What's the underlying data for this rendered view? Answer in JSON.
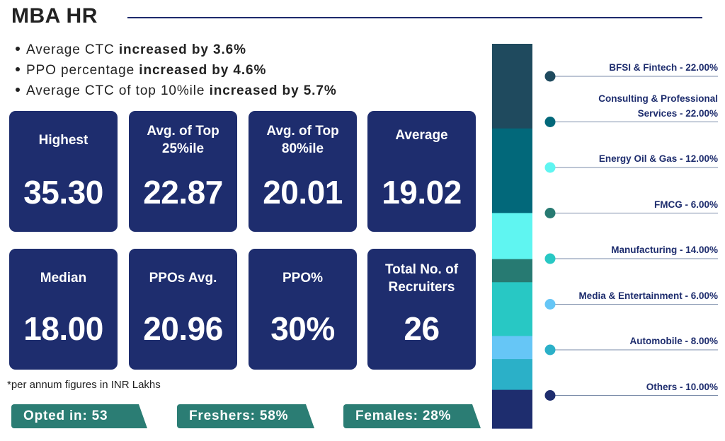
{
  "header": {
    "title": "MBA HR"
  },
  "bullets": [
    {
      "text": "Average CTC ",
      "bold": "increased by 3.6%"
    },
    {
      "text": "PPO percentage ",
      "bold": "increased by 4.6%"
    },
    {
      "text": "Average CTC of top 10%ile ",
      "bold": "increased by 5.7%"
    }
  ],
  "stats": [
    {
      "label": "Highest",
      "value": "35.30"
    },
    {
      "label": "Avg. of Top 25%ile",
      "value": "22.87"
    },
    {
      "label": "Avg. of Top 80%ile",
      "value": "20.01"
    },
    {
      "label": "Average",
      "value": "19.02"
    },
    {
      "label": "Median",
      "value": "18.00"
    },
    {
      "label": "PPOs Avg.",
      "value": "20.96"
    },
    {
      "label": "PPO%",
      "value": "30%"
    },
    {
      "label": "Total No. of Recruiters",
      "value": "26"
    }
  ],
  "footnote": "*per annum figures in INR Lakhs",
  "pills": [
    {
      "text": "Opted in: 53"
    },
    {
      "text": "Freshers: 58%"
    },
    {
      "text": "Females: 28%"
    }
  ],
  "chart_data": {
    "type": "bar",
    "stacked": true,
    "orientation": "vertical",
    "series": [
      {
        "name": "BFSI & Fintech",
        "value": 22.0,
        "label": "BFSI & Fintech - 22.00%",
        "color": "#1f4a5e"
      },
      {
        "name": "Consulting & Professional Services",
        "value": 22.0,
        "label_lines": [
          "Consulting & Professional",
          "Services - 22.00%"
        ],
        "color": "#02687a"
      },
      {
        "name": "Energy Oil & Gas",
        "value": 12.0,
        "label": "Energy Oil & Gas - 12.00%",
        "color": "#5ff5f1"
      },
      {
        "name": "FMCG",
        "value": 6.0,
        "label": "FMCG - 6.00%",
        "color": "#277a72"
      },
      {
        "name": "Manufacturing",
        "value": 14.0,
        "label": "Manufacturing - 14.00%",
        "color": "#28c8c4"
      },
      {
        "name": "Media & Entertainment",
        "value": 6.0,
        "label": "Media & Entertainment - 6.00%",
        "color": "#66c6f6"
      },
      {
        "name": "Automobile",
        "value": 8.0,
        "label": "Automobile - 8.00%",
        "color": "#2bb0c8"
      },
      {
        "name": "Others",
        "value": 10.0,
        "label": "Others - 10.00%",
        "color": "#1e2d6e"
      }
    ],
    "total": 100,
    "marker_colors": [
      "#1f4a5e",
      "#02687a",
      "#5ff5f1",
      "#277a72",
      "#28c8c4",
      "#66c6f6",
      "#2bb0c8",
      "#1e2d6e"
    ],
    "legend_placement": "right"
  }
}
